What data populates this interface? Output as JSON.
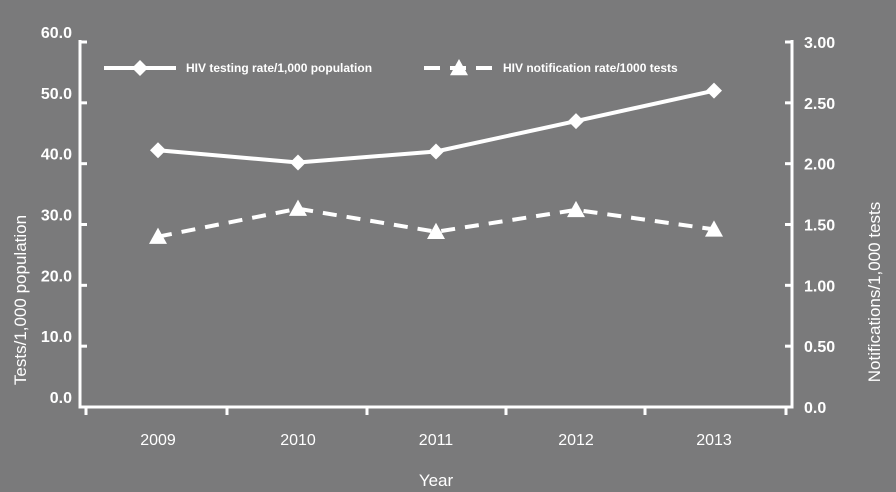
{
  "chart_data": {
    "type": "line",
    "categories": [
      "2009",
      "2010",
      "2011",
      "2012",
      "2013"
    ],
    "xlabel": "Year",
    "ylabel_left": "Tests/1,000 population",
    "ylabel_right": "Notifications/1,000 tests",
    "y_left": {
      "range": [
        0,
        60
      ],
      "ticks": [
        "0.0",
        "10.0",
        "20.0",
        "30.0",
        "40.0",
        "50.0",
        "60.0"
      ]
    },
    "y_right": {
      "range": [
        0,
        3
      ],
      "ticks": [
        "0.0",
        "0.50",
        "1.00",
        "1.50",
        "2.00",
        "2.50",
        "3.00"
      ]
    },
    "series": [
      {
        "name": "HIV testing rate/1,000 population",
        "axis": "left",
        "style": "solid",
        "marker": "diamond",
        "values": [
          42.2,
          40.2,
          42.0,
          47.0,
          52.0
        ]
      },
      {
        "name": "HIV notification rate/1000 tests",
        "axis": "right",
        "style": "dashed",
        "marker": "triangle",
        "values": [
          1.4,
          1.63,
          1.44,
          1.62,
          1.46
        ]
      }
    ],
    "grid": false,
    "legend": "top",
    "colors": {
      "background": "#7a7a7b",
      "foreground": "#ffffff"
    }
  }
}
